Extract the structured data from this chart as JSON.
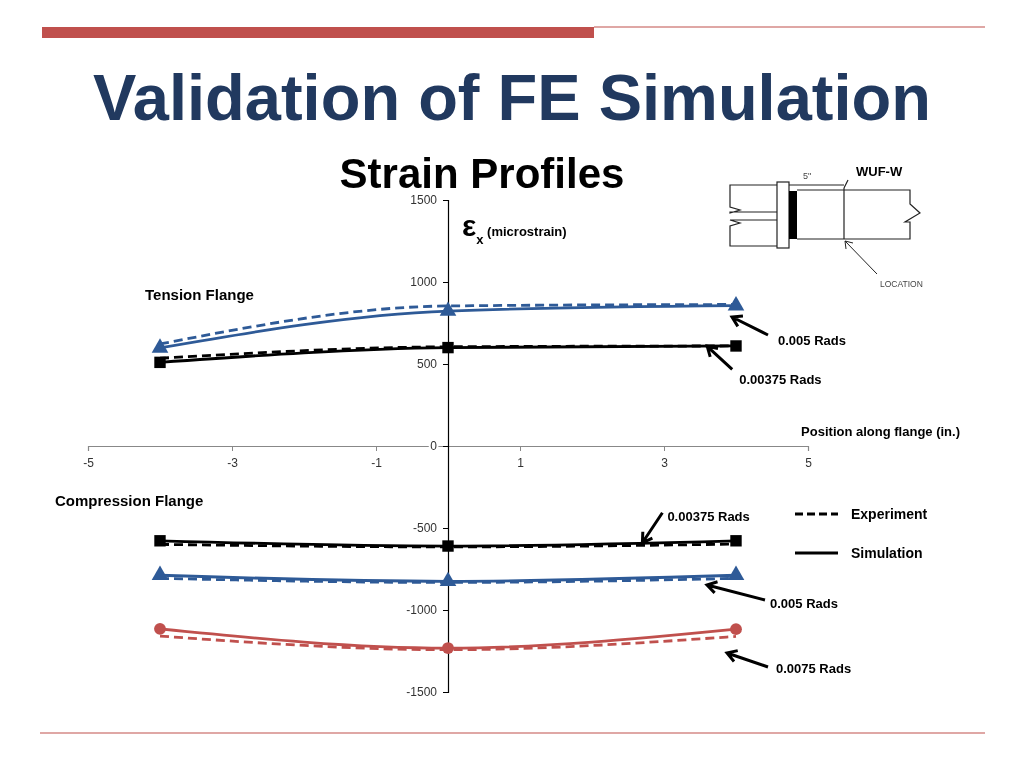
{
  "chart_data": {
    "type": "line",
    "title": "Validation of FE Simulation",
    "subtitle": "Strain Profiles",
    "xlabel": "Position along flange (in.)",
    "ylabel": "ε$_{x}$ (microstrain)",
    "x": [
      -4,
      0,
      4
    ],
    "series": [
      {
        "name": "Simulation",
        "color": "#000000",
        "values": [
          510,
          600,
          610
        ],
        "line_style": "solid",
        "marker": "square"
      },
      {
        "name": "Experiment",
        "color": "#000000",
        "values": [
          535,
          605,
          610
        ],
        "line_style": "dashed"
      },
      {
        "color": "#2e5a97",
        "values": [
          622,
          854,
          863
        ],
        "line_style": "dashed"
      },
      {
        "color": "#2e5a97",
        "values": [
          598,
          823,
          856
        ],
        "line_style": "solid",
        "marker": "triangle"
      },
      {
        "color": "#000000",
        "values": [
          -600,
          -615,
          -598
        ],
        "line_style": "dashed"
      },
      {
        "color": "#000000",
        "values": [
          -578,
          -610,
          -578
        ],
        "line_style": "solid",
        "marker": "square"
      },
      {
        "color": "#2e5a97",
        "values": [
          -807,
          -832,
          -807
        ],
        "line_style": "dashed"
      },
      {
        "color": "#2e5a97",
        "values": [
          -788,
          -825,
          -788
        ],
        "line_style": "solid",
        "marker": "triangle"
      },
      {
        "color": "#c0504d",
        "values": [
          -1159,
          -1242,
          -1161
        ],
        "line_style": "dashed"
      },
      {
        "color": "#c0504d",
        "values": [
          -1115,
          -1232,
          -1117
        ],
        "line_style": "solid",
        "marker": "circle"
      }
    ],
    "xlim": [
      -5,
      5
    ],
    "xticks": [
      -5,
      -3,
      -1,
      1,
      3,
      5
    ],
    "ylim": [
      -1500,
      1500
    ],
    "yticks": [
      -1500,
      -1000,
      -500,
      0,
      500,
      1000,
      1500
    ],
    "legend": "right",
    "annotations": [
      "Tension Flange",
      "Compression Flange",
      "0.005 Rads",
      {
        "text": "0.00375 Rads",
        "x": 3.6,
        "y": 608
      },
      {
        "text": "0.00375 Rads",
        "x": 2.7,
        "y": -590
      },
      "0.005 Rads",
      "0.0075 Rads",
      "WUF-W",
      "5\"",
      "LOCATION"
    ]
  }
}
